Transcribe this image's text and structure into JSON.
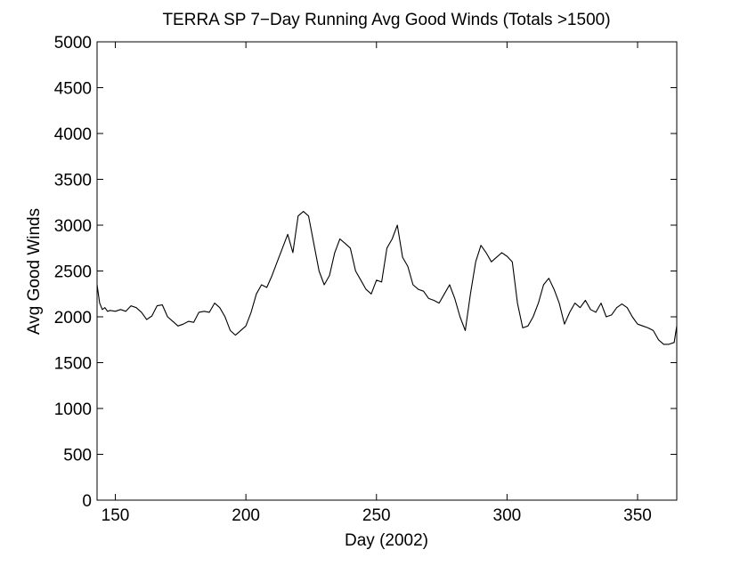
{
  "chart_data": {
    "type": "line",
    "title": "TERRA SP 7−Day Running Avg Good Winds (Totals >1500)",
    "xlabel": "Day (2002)",
    "ylabel": "Avg Good Winds",
    "xlim": [
      143,
      365
    ],
    "ylim": [
      0,
      5000
    ],
    "xticks": [
      150,
      200,
      250,
      300,
      350
    ],
    "yticks": [
      0,
      500,
      1000,
      1500,
      2000,
      2500,
      3000,
      3500,
      4000,
      4500,
      5000
    ],
    "grid": false,
    "series": [
      {
        "color": "#000000",
        "x": [
          143,
          144,
          145,
          146,
          147,
          148,
          150,
          152,
          154,
          156,
          158,
          160,
          162,
          164,
          166,
          168,
          170,
          172,
          174,
          176,
          178,
          180,
          182,
          184,
          186,
          188,
          190,
          192,
          194,
          196,
          198,
          200,
          202,
          204,
          206,
          208,
          210,
          212,
          214,
          216,
          218,
          220,
          222,
          224,
          226,
          228,
          230,
          232,
          234,
          236,
          238,
          240,
          242,
          244,
          246,
          248,
          250,
          252,
          254,
          256,
          258,
          260,
          262,
          264,
          266,
          268,
          270,
          272,
          274,
          276,
          278,
          280,
          282,
          284,
          286,
          288,
          290,
          292,
          294,
          296,
          298,
          300,
          302,
          304,
          306,
          308,
          310,
          312,
          314,
          316,
          318,
          320,
          322,
          324,
          326,
          328,
          330,
          332,
          334,
          336,
          338,
          340,
          342,
          344,
          346,
          348,
          350,
          352,
          354,
          356,
          358,
          360,
          362,
          364,
          365
        ],
        "y": [
          2350,
          2150,
          2080,
          2100,
          2060,
          2070,
          2060,
          2080,
          2060,
          2120,
          2100,
          2050,
          1970,
          2010,
          2120,
          2130,
          2000,
          1950,
          1900,
          1920,
          1950,
          1940,
          2050,
          2060,
          2050,
          2150,
          2100,
          2000,
          1850,
          1800,
          1850,
          1900,
          2050,
          2250,
          2350,
          2320,
          2450,
          2600,
          2750,
          2900,
          2700,
          3100,
          3150,
          3100,
          2800,
          2500,
          2350,
          2450,
          2700,
          2850,
          2800,
          2750,
          2500,
          2400,
          2300,
          2250,
          2400,
          2380,
          2750,
          2850,
          3000,
          2650,
          2550,
          2350,
          2300,
          2280,
          2200,
          2180,
          2150,
          2250,
          2350,
          2200,
          2000,
          1850,
          2250,
          2600,
          2780,
          2700,
          2600,
          2650,
          2700,
          2660,
          2600,
          2150,
          1880,
          1900,
          2000,
          2150,
          2350,
          2420,
          2300,
          2150,
          1920,
          2050,
          2150,
          2100,
          2180,
          2080,
          2050,
          2150,
          2000,
          2020,
          2100,
          2140,
          2100,
          2000,
          1920,
          1900,
          1880,
          1850,
          1750,
          1700,
          1700,
          1720,
          1900
        ]
      }
    ]
  }
}
